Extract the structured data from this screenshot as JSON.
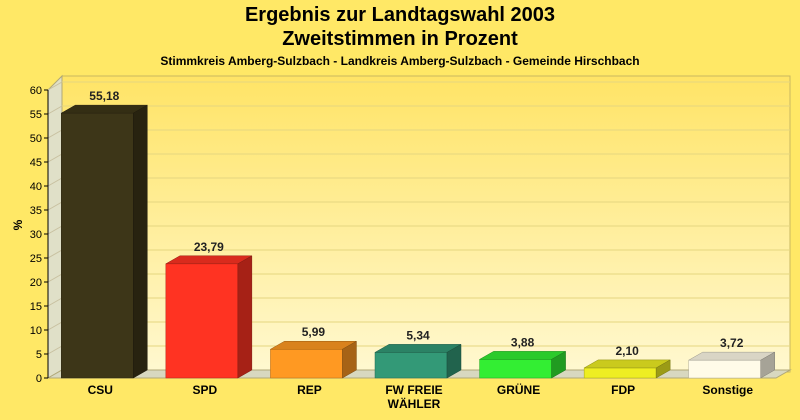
{
  "chart_data": {
    "type": "bar",
    "title": "Ergebnis zur Landtagswahl 2003",
    "subtitle": "Zweitstimmen in Prozent",
    "subtitle2": "Stimmkreis Amberg-Sulzbach - Landkreis Amberg-Sulzbach - Gemeinde Hirschbach",
    "ylabel": "%",
    "ylim": [
      0,
      60
    ],
    "yticks": [
      0,
      5,
      10,
      15,
      20,
      25,
      30,
      35,
      40,
      45,
      50,
      55,
      60
    ],
    "categories": [
      {
        "label_lines": [
          "CSU"
        ]
      },
      {
        "label_lines": [
          "SPD"
        ]
      },
      {
        "label_lines": [
          "REP"
        ]
      },
      {
        "label_lines": [
          "FW FREIE",
          "WÄHLER"
        ]
      },
      {
        "label_lines": [
          "GRÜNE"
        ]
      },
      {
        "label_lines": [
          "FDP"
        ]
      },
      {
        "label_lines": [
          "Sonstige"
        ]
      }
    ],
    "values": [
      55.18,
      23.79,
      5.99,
      5.34,
      3.88,
      2.1,
      3.72
    ],
    "value_labels": [
      "55,18",
      "23,79",
      "5,99",
      "5,34",
      "3,88",
      "2,10",
      "3,72"
    ],
    "colors": [
      "#3d3618",
      "#ff3322",
      "#ff9922",
      "#339977",
      "#33ee33",
      "#eeee22",
      "#fffbe8"
    ],
    "grid": true
  }
}
